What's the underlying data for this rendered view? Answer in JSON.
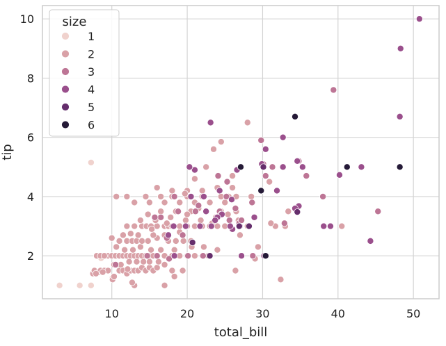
{
  "chart_data": {
    "type": "scatter",
    "title": "",
    "xlabel": "total_bill",
    "ylabel": "tip",
    "xlim": [
      0.8,
      53.4
    ],
    "ylim": [
      0.55,
      10.45
    ],
    "xticks": [
      10,
      20,
      30,
      40,
      50
    ],
    "yticks": [
      2,
      4,
      6,
      8,
      10
    ],
    "grid": true,
    "legend": {
      "title": "size",
      "placement": "top-left",
      "entries": [
        {
          "label": "1",
          "color": "#f0d2cd"
        },
        {
          "label": "2",
          "color": "#d9a1a7"
        },
        {
          "label": "3",
          "color": "#bd7595"
        },
        {
          "label": "4",
          "color": "#9a4f8c"
        },
        {
          "label": "5",
          "color": "#652e6c"
        },
        {
          "label": "6",
          "color": "#251a37"
        }
      ]
    },
    "colors": {
      "1": "#f0d2cd",
      "2": "#d9a1a7",
      "3": "#bd7595",
      "4": "#9a4f8c",
      "5": "#652e6c",
      "6": "#251a37",
      "panel_border": "#cccccc",
      "grid": "#d4d4d4"
    },
    "series": [
      {
        "name": "1",
        "points": [
          [
            3.07,
            1.0
          ],
          [
            7.25,
            1.0
          ],
          [
            5.75,
            1.0
          ],
          [
            8.58,
            1.92
          ],
          [
            10.07,
            1.25
          ],
          [
            7.25,
            5.15
          ]
        ]
      },
      {
        "name": "2",
        "points": [
          [
            7.5,
            1.4
          ],
          [
            7.7,
            1.5
          ],
          [
            8.3,
            1.45
          ],
          [
            8.5,
            1.5
          ],
          [
            9.0,
            1.5
          ],
          [
            9.5,
            1.5
          ],
          [
            10.1,
            1.2
          ],
          [
            10.3,
            1.3
          ],
          [
            11.0,
            1.5
          ],
          [
            11.5,
            1.5
          ],
          [
            12.0,
            1.4
          ],
          [
            12.5,
            1.5
          ],
          [
            13.0,
            1.5
          ],
          [
            13.5,
            1.5
          ],
          [
            14.0,
            1.6
          ],
          [
            14.5,
            1.5
          ],
          [
            15.0,
            1.6
          ],
          [
            15.5,
            1.5
          ],
          [
            16.0,
            1.6
          ],
          [
            17.0,
            1.7
          ],
          [
            18.0,
            1.5
          ],
          [
            13.0,
            1.0
          ],
          [
            12.7,
            1.1
          ],
          [
            8.0,
            2.0
          ],
          [
            8.5,
            2.0
          ],
          [
            9.5,
            2.0
          ],
          [
            10.0,
            2.0
          ],
          [
            10.5,
            2.0
          ],
          [
            11.0,
            2.0
          ],
          [
            11.5,
            2.0
          ],
          [
            12.0,
            2.0
          ],
          [
            12.5,
            2.0
          ],
          [
            13.0,
            2.0
          ],
          [
            13.5,
            2.0
          ],
          [
            14.0,
            2.0
          ],
          [
            14.5,
            2.0
          ],
          [
            15.0,
            2.0
          ],
          [
            15.5,
            2.0
          ],
          [
            16.0,
            2.0
          ],
          [
            17.0,
            2.0
          ],
          [
            18.0,
            2.0
          ],
          [
            19.0,
            2.0
          ],
          [
            20.0,
            2.0
          ],
          [
            21.0,
            2.0
          ],
          [
            10.3,
            1.7
          ],
          [
            11.2,
            1.7
          ],
          [
            12.3,
            1.8
          ],
          [
            13.3,
            1.8
          ],
          [
            14.2,
            1.8
          ],
          [
            15.0,
            1.8
          ],
          [
            16.2,
            1.8
          ],
          [
            10.6,
            2.3
          ],
          [
            11.7,
            2.2
          ],
          [
            12.8,
            2.2
          ],
          [
            13.8,
            2.3
          ],
          [
            15.2,
            2.2
          ],
          [
            16.5,
            2.2
          ],
          [
            18.3,
            2.2
          ],
          [
            10.0,
            2.6
          ],
          [
            11.0,
            2.5
          ],
          [
            12.0,
            2.5
          ],
          [
            12.7,
            2.5
          ],
          [
            13.3,
            2.5
          ],
          [
            14.0,
            2.5
          ],
          [
            14.8,
            2.5
          ],
          [
            16.0,
            2.6
          ],
          [
            17.5,
            2.5
          ],
          [
            18.5,
            2.5
          ],
          [
            19.5,
            2.5
          ],
          [
            20.5,
            2.5
          ],
          [
            11.5,
            2.7
          ],
          [
            12.5,
            2.75
          ],
          [
            13.5,
            2.7
          ],
          [
            15.5,
            2.7
          ],
          [
            17.0,
            2.7
          ],
          [
            19.0,
            2.8
          ],
          [
            12.0,
            3.0
          ],
          [
            13.0,
            3.0
          ],
          [
            14.0,
            3.0
          ],
          [
            14.6,
            3.0
          ],
          [
            15.2,
            3.0
          ],
          [
            16.0,
            3.0
          ],
          [
            17.0,
            3.0
          ],
          [
            17.5,
            3.0
          ],
          [
            18.0,
            3.0
          ],
          [
            19.0,
            3.0
          ],
          [
            20.0,
            3.0
          ],
          [
            21.0,
            3.0
          ],
          [
            22.0,
            3.0
          ],
          [
            23.0,
            3.0
          ],
          [
            24.0,
            3.0
          ],
          [
            25.0,
            3.0
          ],
          [
            27.0,
            3.0
          ],
          [
            28.0,
            3.0
          ],
          [
            31.7,
            3.0
          ],
          [
            33.0,
            3.0
          ],
          [
            40.5,
            3.0
          ],
          [
            13.8,
            3.2
          ],
          [
            15.8,
            3.2
          ],
          [
            17.8,
            3.3
          ],
          [
            19.8,
            3.2
          ],
          [
            21.8,
            3.2
          ],
          [
            23.8,
            3.3
          ],
          [
            16.5,
            3.5
          ],
          [
            18.5,
            3.5
          ],
          [
            20.5,
            3.5
          ],
          [
            22.5,
            3.5
          ],
          [
            24.5,
            3.5
          ],
          [
            26.5,
            3.5
          ],
          [
            14.8,
            3.4
          ],
          [
            13.0,
            3.8
          ],
          [
            15.0,
            3.8
          ],
          [
            17.0,
            3.8
          ],
          [
            19.0,
            3.8
          ],
          [
            21.0,
            3.8
          ],
          [
            23.0,
            3.8
          ],
          [
            25.0,
            3.8
          ],
          [
            12.0,
            4.0
          ],
          [
            14.5,
            4.0
          ],
          [
            16.5,
            4.0
          ],
          [
            18.0,
            4.0
          ],
          [
            20.0,
            4.0
          ],
          [
            22.0,
            4.0
          ],
          [
            24.5,
            4.0
          ],
          [
            26.5,
            4.0
          ],
          [
            28.5,
            4.0
          ],
          [
            10.6,
            4.0
          ],
          [
            16.0,
            4.3
          ],
          [
            18.0,
            4.2
          ],
          [
            20.0,
            4.2
          ],
          [
            22.0,
            4.2
          ],
          [
            24.0,
            4.3
          ],
          [
            26.0,
            4.3
          ],
          [
            19.7,
            4.1
          ],
          [
            21.0,
            4.6
          ],
          [
            22.5,
            5.0
          ],
          [
            23.5,
            5.6
          ],
          [
            24.5,
            5.85
          ],
          [
            25.5,
            4.0
          ],
          [
            26.0,
            4.7
          ],
          [
            28.0,
            6.5
          ],
          [
            20.0,
            3.4
          ],
          [
            17.3,
            3.1
          ],
          [
            15.3,
            2.9
          ],
          [
            9.0,
            2.0
          ],
          [
            12.1,
            1.55
          ],
          [
            8.8,
            1.45
          ],
          [
            7.9,
            1.4
          ],
          [
            17.0,
            1.0
          ],
          [
            18.3,
            1.3
          ],
          [
            19.4,
            1.5
          ],
          [
            26.4,
            1.5
          ],
          [
            29.0,
            1.9
          ],
          [
            32.4,
            1.2
          ],
          [
            33.4,
            3.5
          ],
          [
            30.4,
            2.0
          ],
          [
            31.1,
            3.1
          ],
          [
            27.0,
            2.7
          ],
          [
            24.0,
            2.2
          ],
          [
            22.8,
            2.0
          ],
          [
            22.2,
            2.3
          ],
          [
            20.6,
            2.3
          ],
          [
            26.8,
            3.2
          ],
          [
            25.4,
            3.4
          ],
          [
            23.3,
            3.1
          ],
          [
            21.5,
            3.6
          ],
          [
            29.4,
            2.3
          ],
          [
            30.9,
            4.5
          ]
        ]
      },
      {
        "name": "3",
        "points": [
          [
            10.5,
            1.7
          ],
          [
            16.0,
            2.0
          ],
          [
            17.6,
            1.9
          ],
          [
            20.1,
            2.0
          ],
          [
            21.1,
            3.5
          ],
          [
            24.3,
            3.5
          ],
          [
            24.1,
            4.7
          ],
          [
            25.2,
            4.0
          ],
          [
            25.6,
            3.2
          ],
          [
            26.9,
            3.1
          ],
          [
            29.8,
            5.9
          ],
          [
            28.7,
            2.0
          ],
          [
            30.1,
            5.1
          ],
          [
            34.8,
            5.2
          ],
          [
            35.8,
            4.7
          ],
          [
            39.4,
            7.6
          ],
          [
            38.0,
            4.0
          ],
          [
            30.5,
            2.0
          ],
          [
            18.3,
            4.0
          ],
          [
            19.8,
            3.0
          ],
          [
            22.1,
            2.0
          ],
          [
            14.7,
            2.0
          ],
          [
            16.5,
            3.3
          ],
          [
            17.3,
            2.6
          ],
          [
            25.3,
            4.5
          ],
          [
            28.6,
            3.8
          ],
          [
            26.4,
            3.6
          ],
          [
            32.9,
            3.1
          ],
          [
            27.2,
            3.2
          ],
          [
            45.3,
            3.5
          ],
          [
            30.4,
            4.7
          ],
          [
            31.3,
            5.0
          ],
          [
            21.5,
            3.7
          ],
          [
            19.4,
            2.7
          ],
          [
            24.5,
            3.4
          ],
          [
            15.7,
            3.3
          ],
          [
            18.8,
            3.5
          ]
        ]
      },
      {
        "name": "4",
        "points": [
          [
            48.3,
            9.0
          ],
          [
            50.8,
            10.0
          ],
          [
            48.2,
            6.7
          ],
          [
            43.1,
            5.0
          ],
          [
            44.3,
            2.5
          ],
          [
            38.1,
            3.0
          ],
          [
            39.0,
            3.0
          ],
          [
            40.2,
            4.73
          ],
          [
            34.8,
            3.68
          ],
          [
            34.3,
            3.6
          ],
          [
            35.3,
            5.0
          ],
          [
            32.7,
            5.0
          ],
          [
            29.9,
            5.1
          ],
          [
            30.4,
            5.6
          ],
          [
            31.9,
            4.2
          ],
          [
            23.2,
            3.0
          ],
          [
            24.6,
            3.4
          ],
          [
            25.9,
            3.9
          ],
          [
            22.2,
            4.0
          ],
          [
            18.3,
            2.0
          ],
          [
            17.5,
            2.7
          ],
          [
            19.8,
            3.0
          ],
          [
            18.2,
            3.0
          ],
          [
            20.5,
            4.0
          ],
          [
            24.0,
            3.3
          ],
          [
            26.6,
            4.9
          ],
          [
            21.7,
            3.0
          ],
          [
            23.7,
            3.2
          ],
          [
            22.5,
            3.5
          ],
          [
            27.2,
            2.0
          ],
          [
            30.2,
            2.0
          ],
          [
            32.7,
            6.0
          ],
          [
            34.6,
            5.2
          ],
          [
            23.1,
            6.5
          ],
          [
            41.2,
            5.0
          ],
          [
            26.0,
            2.9
          ],
          [
            24.3,
            4.2
          ],
          [
            21.0,
            4.9
          ],
          [
            20.3,
            5.0
          ],
          [
            28.9,
            3.3
          ],
          [
            25.7,
            3.0
          ],
          [
            27.0,
            3.0
          ]
        ]
      },
      {
        "name": "5",
        "points": [
          [
            29.8,
            4.2
          ],
          [
            30.1,
            5.0
          ],
          [
            28.2,
            3.0
          ],
          [
            20.7,
            2.45
          ],
          [
            26.9,
            3.0
          ],
          [
            23.0,
            2.0
          ],
          [
            34.6,
            3.48
          ]
        ]
      },
      {
        "name": "6",
        "points": [
          [
            48.2,
            5.0
          ],
          [
            34.3,
            6.7
          ],
          [
            27.1,
            5.0
          ],
          [
            29.8,
            4.2
          ],
          [
            30.4,
            2.0
          ],
          [
            41.2,
            5.0
          ]
        ]
      }
    ]
  }
}
